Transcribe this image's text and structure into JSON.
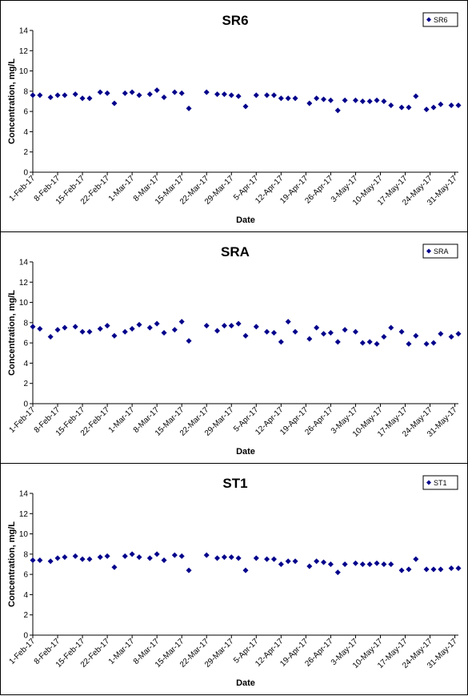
{
  "colors": {
    "marker": "#00008B",
    "axis": "#000000",
    "background": "#ffffff"
  },
  "chart_data": [
    {
      "type": "scatter",
      "title": "SR6",
      "xlabel": "Date",
      "ylabel": "Concentration, mg/L",
      "ylim": [
        0,
        14
      ],
      "yticks": [
        0,
        2,
        4,
        6,
        8,
        10,
        12,
        14
      ],
      "xlim": [
        "2017-02-01",
        "2017-06-01"
      ],
      "xtick_labels": [
        "1-Feb-17",
        "8-Feb-17",
        "15-Feb-17",
        "22-Feb-17",
        "1-Mar-17",
        "8-Mar-17",
        "15-Mar-17",
        "22-Mar-17",
        "29-Mar-17",
        "5-Apr-17",
        "12-Apr-17",
        "19-Apr-17",
        "26-Apr-17",
        "3-May-17",
        "10-May-17",
        "17-May-17",
        "24-May-17",
        "31-May-17"
      ],
      "grid": false,
      "legend_position": "top-right",
      "series": [
        {
          "name": "SR6",
          "marker": "diamond",
          "points": [
            [
              "2017-02-01",
              7.6
            ],
            [
              "2017-02-03",
              7.6
            ],
            [
              "2017-02-06",
              7.4
            ],
            [
              "2017-02-08",
              7.6
            ],
            [
              "2017-02-10",
              7.6
            ],
            [
              "2017-02-13",
              7.7
            ],
            [
              "2017-02-15",
              7.3
            ],
            [
              "2017-02-17",
              7.3
            ],
            [
              "2017-02-20",
              7.9
            ],
            [
              "2017-02-22",
              7.8
            ],
            [
              "2017-02-24",
              6.8
            ],
            [
              "2017-02-27",
              7.8
            ],
            [
              "2017-03-01",
              7.9
            ],
            [
              "2017-03-03",
              7.6
            ],
            [
              "2017-03-06",
              7.7
            ],
            [
              "2017-03-08",
              8.1
            ],
            [
              "2017-03-10",
              7.4
            ],
            [
              "2017-03-13",
              7.9
            ],
            [
              "2017-03-15",
              7.8
            ],
            [
              "2017-03-17",
              6.3
            ],
            [
              "2017-03-22",
              7.9
            ],
            [
              "2017-03-25",
              7.7
            ],
            [
              "2017-03-27",
              7.7
            ],
            [
              "2017-03-29",
              7.6
            ],
            [
              "2017-03-31",
              7.5
            ],
            [
              "2017-04-02",
              6.5
            ],
            [
              "2017-04-05",
              7.6
            ],
            [
              "2017-04-08",
              7.6
            ],
            [
              "2017-04-10",
              7.6
            ],
            [
              "2017-04-12",
              7.3
            ],
            [
              "2017-04-14",
              7.3
            ],
            [
              "2017-04-16",
              7.3
            ],
            [
              "2017-04-20",
              6.8
            ],
            [
              "2017-04-22",
              7.3
            ],
            [
              "2017-04-24",
              7.2
            ],
            [
              "2017-04-26",
              7.1
            ],
            [
              "2017-04-28",
              6.1
            ],
            [
              "2017-04-30",
              7.1
            ],
            [
              "2017-05-03",
              7.1
            ],
            [
              "2017-05-05",
              7.0
            ],
            [
              "2017-05-07",
              7.0
            ],
            [
              "2017-05-09",
              7.1
            ],
            [
              "2017-05-11",
              7.0
            ],
            [
              "2017-05-13",
              6.6
            ],
            [
              "2017-05-16",
              6.4
            ],
            [
              "2017-05-18",
              6.4
            ],
            [
              "2017-05-20",
              7.5
            ],
            [
              "2017-05-23",
              6.2
            ],
            [
              "2017-05-25",
              6.4
            ],
            [
              "2017-05-27",
              6.7
            ],
            [
              "2017-05-30",
              6.6
            ],
            [
              "2017-06-01",
              6.6
            ]
          ]
        }
      ]
    },
    {
      "type": "scatter",
      "title": "SRA",
      "xlabel": "Date",
      "ylabel": "Concentration, mg/L",
      "ylim": [
        0,
        14
      ],
      "yticks": [
        0,
        2,
        4,
        6,
        8,
        10,
        12,
        14
      ],
      "xlim": [
        "2017-02-01",
        "2017-06-01"
      ],
      "xtick_labels": [
        "1-Feb-17",
        "8-Feb-17",
        "15-Feb-17",
        "22-Feb-17",
        "1-Mar-17",
        "8-Mar-17",
        "15-Mar-17",
        "22-Mar-17",
        "29-Mar-17",
        "5-Apr-17",
        "12-Apr-17",
        "19-Apr-17",
        "26-Apr-17",
        "3-May-17",
        "10-May-17",
        "17-May-17",
        "24-May-17",
        "31-May-17"
      ],
      "grid": false,
      "legend_position": "top-right",
      "series": [
        {
          "name": "SRA",
          "marker": "diamond",
          "points": [
            [
              "2017-02-01",
              7.6
            ],
            [
              "2017-02-03",
              7.4
            ],
            [
              "2017-02-06",
              6.6
            ],
            [
              "2017-02-08",
              7.3
            ],
            [
              "2017-02-10",
              7.5
            ],
            [
              "2017-02-13",
              7.6
            ],
            [
              "2017-02-15",
              7.1
            ],
            [
              "2017-02-17",
              7.1
            ],
            [
              "2017-02-20",
              7.4
            ],
            [
              "2017-02-22",
              7.7
            ],
            [
              "2017-02-24",
              6.7
            ],
            [
              "2017-02-27",
              7.1
            ],
            [
              "2017-03-01",
              7.4
            ],
            [
              "2017-03-03",
              7.8
            ],
            [
              "2017-03-06",
              7.5
            ],
            [
              "2017-03-08",
              7.9
            ],
            [
              "2017-03-10",
              7.0
            ],
            [
              "2017-03-13",
              7.3
            ],
            [
              "2017-03-15",
              8.1
            ],
            [
              "2017-03-17",
              6.2
            ],
            [
              "2017-03-22",
              7.7
            ],
            [
              "2017-03-25",
              7.2
            ],
            [
              "2017-03-27",
              7.7
            ],
            [
              "2017-03-29",
              7.7
            ],
            [
              "2017-03-31",
              7.9
            ],
            [
              "2017-04-02",
              6.7
            ],
            [
              "2017-04-05",
              7.6
            ],
            [
              "2017-04-08",
              7.1
            ],
            [
              "2017-04-10",
              7.0
            ],
            [
              "2017-04-12",
              6.1
            ],
            [
              "2017-04-14",
              8.1
            ],
            [
              "2017-04-16",
              7.1
            ],
            [
              "2017-04-20",
              6.4
            ],
            [
              "2017-04-22",
              7.5
            ],
            [
              "2017-04-24",
              6.9
            ],
            [
              "2017-04-26",
              7.0
            ],
            [
              "2017-04-28",
              6.1
            ],
            [
              "2017-04-30",
              7.3
            ],
            [
              "2017-05-03",
              7.1
            ],
            [
              "2017-05-05",
              6.0
            ],
            [
              "2017-05-07",
              6.1
            ],
            [
              "2017-05-09",
              5.9
            ],
            [
              "2017-05-11",
              6.6
            ],
            [
              "2017-05-13",
              7.5
            ],
            [
              "2017-05-16",
              7.1
            ],
            [
              "2017-05-18",
              5.9
            ],
            [
              "2017-05-20",
              6.7
            ],
            [
              "2017-05-23",
              5.9
            ],
            [
              "2017-05-25",
              6.0
            ],
            [
              "2017-05-27",
              6.9
            ],
            [
              "2017-05-30",
              6.6
            ],
            [
              "2017-06-01",
              6.9
            ]
          ]
        }
      ]
    },
    {
      "type": "scatter",
      "title": "ST1",
      "xlabel": "Date",
      "ylabel": "Concentration, mg/L",
      "ylim": [
        0,
        14
      ],
      "yticks": [
        0,
        2,
        4,
        6,
        8,
        10,
        12,
        14
      ],
      "xlim": [
        "2017-02-01",
        "2017-06-01"
      ],
      "xtick_labels": [
        "1-Feb-17",
        "8-Feb-17",
        "15-Feb-17",
        "22-Feb-17",
        "1-Mar-17",
        "8-Mar-17",
        "15-Mar-17",
        "22-Mar-17",
        "29-Mar-17",
        "5-Apr-17",
        "12-Apr-17",
        "19-Apr-17",
        "26-Apr-17",
        "3-May-17",
        "10-May-17",
        "17-May-17",
        "24-May-17",
        "31-May-17"
      ],
      "grid": false,
      "legend_position": "top-right",
      "series": [
        {
          "name": "ST1",
          "marker": "diamond",
          "points": [
            [
              "2017-02-01",
              7.4
            ],
            [
              "2017-02-03",
              7.4
            ],
            [
              "2017-02-06",
              7.3
            ],
            [
              "2017-02-08",
              7.6
            ],
            [
              "2017-02-10",
              7.7
            ],
            [
              "2017-02-13",
              7.8
            ],
            [
              "2017-02-15",
              7.5
            ],
            [
              "2017-02-17",
              7.5
            ],
            [
              "2017-02-20",
              7.7
            ],
            [
              "2017-02-22",
              7.8
            ],
            [
              "2017-02-24",
              6.7
            ],
            [
              "2017-02-27",
              7.8
            ],
            [
              "2017-03-01",
              8.0
            ],
            [
              "2017-03-03",
              7.7
            ],
            [
              "2017-03-06",
              7.6
            ],
            [
              "2017-03-08",
              8.0
            ],
            [
              "2017-03-10",
              7.4
            ],
            [
              "2017-03-13",
              7.9
            ],
            [
              "2017-03-15",
              7.8
            ],
            [
              "2017-03-17",
              6.4
            ],
            [
              "2017-03-22",
              7.9
            ],
            [
              "2017-03-25",
              7.6
            ],
            [
              "2017-03-27",
              7.7
            ],
            [
              "2017-03-29",
              7.7
            ],
            [
              "2017-03-31",
              7.6
            ],
            [
              "2017-04-02",
              6.4
            ],
            [
              "2017-04-05",
              7.6
            ],
            [
              "2017-04-08",
              7.5
            ],
            [
              "2017-04-10",
              7.5
            ],
            [
              "2017-04-12",
              7.0
            ],
            [
              "2017-04-14",
              7.3
            ],
            [
              "2017-04-16",
              7.3
            ],
            [
              "2017-04-20",
              6.8
            ],
            [
              "2017-04-22",
              7.3
            ],
            [
              "2017-04-24",
              7.2
            ],
            [
              "2017-04-26",
              7.0
            ],
            [
              "2017-04-28",
              6.2
            ],
            [
              "2017-04-30",
              7.0
            ],
            [
              "2017-05-03",
              7.1
            ],
            [
              "2017-05-05",
              7.0
            ],
            [
              "2017-05-07",
              7.0
            ],
            [
              "2017-05-09",
              7.1
            ],
            [
              "2017-05-11",
              7.0
            ],
            [
              "2017-05-13",
              7.0
            ],
            [
              "2017-05-16",
              6.4
            ],
            [
              "2017-05-18",
              6.5
            ],
            [
              "2017-05-20",
              7.5
            ],
            [
              "2017-05-23",
              6.5
            ],
            [
              "2017-05-25",
              6.5
            ],
            [
              "2017-05-27",
              6.5
            ],
            [
              "2017-05-30",
              6.6
            ],
            [
              "2017-06-01",
              6.6
            ]
          ]
        }
      ]
    }
  ]
}
